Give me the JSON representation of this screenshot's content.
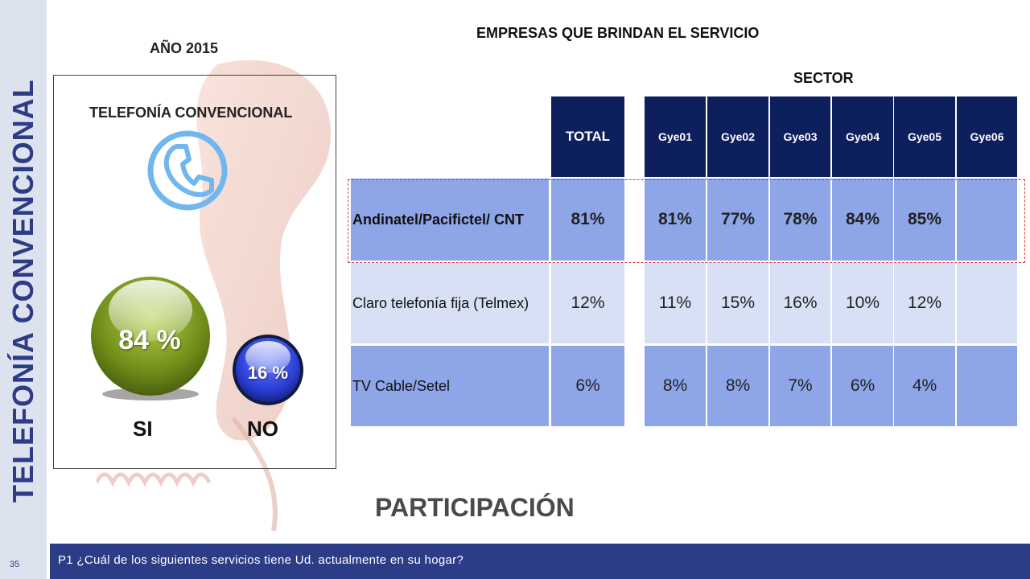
{
  "sidebar": {
    "vertical_title": "TELEFONÍA CONVENCIONAL"
  },
  "left_panel": {
    "year_title": "AÑO 2015",
    "panel_title": "TELEFONÍA CONVENCIONAL",
    "icon": "phone-icon",
    "si": {
      "label": "SI",
      "value": "84 %",
      "fraction": 0.84,
      "color": "#7a9a1c"
    },
    "no": {
      "label": "NO",
      "value": "16 %",
      "fraction": 0.16,
      "color": "#2b3fd6"
    }
  },
  "table": {
    "title": "EMPRESAS QUE BRINDAN EL SERVICIO",
    "sector_title": "SECTOR",
    "total_header": "TOTAL",
    "sector_headers": [
      "Gye01",
      "Gye02",
      "Gye03",
      "Gye04",
      "Gye05",
      "Gye06"
    ],
    "rows": [
      {
        "name": "Andinatel/Pacifictel/ CNT",
        "total": "81%",
        "values": [
          "81%",
          "77%",
          "78%",
          "84%",
          "85%",
          ""
        ],
        "highlight": true
      },
      {
        "name": "Claro telefonía fija (Telmex)",
        "total": "12%",
        "values": [
          "11%",
          "15%",
          "16%",
          "10%",
          "12%",
          ""
        ],
        "highlight": false
      },
      {
        "name": "TV Cable/Setel",
        "total": "6%",
        "values": [
          "8%",
          "8%",
          "7%",
          "6%",
          "4%",
          ""
        ],
        "highlight": false
      }
    ],
    "colors": {
      "header": "#0d1f5c",
      "row_dark": "#8ea5e8",
      "row_light": "#d8e0f6",
      "highlight_border": "#d63b3b"
    }
  },
  "section_label": "PARTICIPACIÓN",
  "footer": {
    "slide_number": "35",
    "question": "P1 ¿Cuál de los siguientes servicios tiene Ud. actualmente en su hogar?"
  }
}
